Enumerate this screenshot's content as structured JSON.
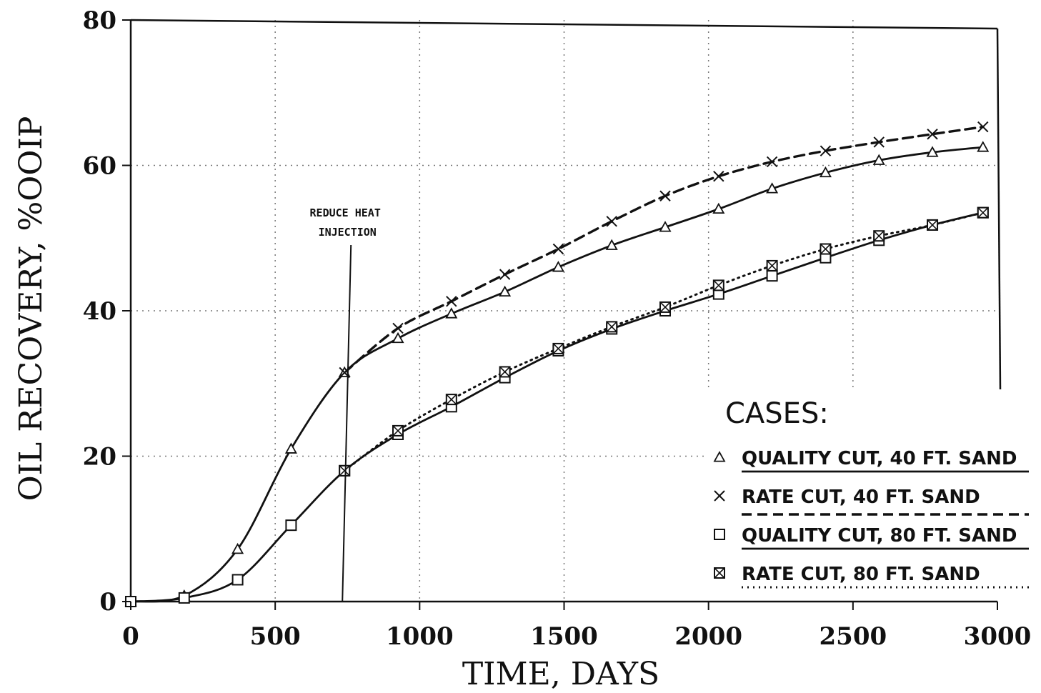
{
  "chart_data": {
    "type": "line",
    "xlabel": "TIME, DAYS",
    "ylabel": "OIL RECOVERY, %OOIP",
    "xlim": [
      0,
      3000
    ],
    "ylim": [
      0,
      80
    ],
    "xticks": [
      "0",
      "500",
      "1000",
      "1500",
      "2000",
      "2500",
      "3000"
    ],
    "yticks": [
      "0",
      "20",
      "40",
      "60",
      "80"
    ],
    "grid": "dotted",
    "legend_title": "CASES:",
    "legend_placement": "bottom-right",
    "annotation": {
      "lines": [
        "REDUCE HEAT",
        "INJECTION"
      ],
      "x": 740
    },
    "series": [
      {
        "name": "QUALITY CUT, 40 FT. SAND",
        "marker": "triangle",
        "line_style": "solid",
        "x": [
          0,
          185,
          370,
          555,
          740,
          925,
          1110,
          1295,
          1480,
          1665,
          1850,
          2035,
          2220,
          2405,
          2590,
          2775,
          2950
        ],
        "y": [
          0,
          0.8,
          7.2,
          21,
          31.5,
          36.2,
          39.6,
          42.6,
          46,
          49,
          51.5,
          54,
          56.8,
          59,
          60.7,
          61.8,
          62.5
        ]
      },
      {
        "name": "RATE CUT, 40 FT. SAND",
        "marker": "x",
        "line_style": "dashed",
        "x": [
          740,
          925,
          1110,
          1295,
          1480,
          1665,
          1850,
          2035,
          2220,
          2405,
          2590,
          2775,
          2950
        ],
        "y": [
          31.5,
          37.6,
          41.3,
          45,
          48.5,
          52.3,
          55.8,
          58.5,
          60.5,
          62,
          63.2,
          64.3,
          65.3
        ]
      },
      {
        "name": "QUALITY CUT, 80 FT. SAND",
        "marker": "square",
        "line_style": "solid",
        "x": [
          0,
          185,
          370,
          555,
          740,
          925,
          1110,
          1295,
          1480,
          1665,
          1850,
          2035,
          2220,
          2405,
          2590,
          2775,
          2950
        ],
        "y": [
          0,
          0.5,
          3,
          10.5,
          18,
          23,
          26.8,
          30.8,
          34.5,
          37.5,
          40,
          42.3,
          44.8,
          47.3,
          49.7,
          51.8,
          53.5
        ]
      },
      {
        "name": "RATE CUT, 80 FT. SAND",
        "marker": "crossed-square",
        "line_style": "dotted",
        "x": [
          740,
          925,
          1110,
          1295,
          1480,
          1665,
          1850,
          2035,
          2220,
          2405,
          2590,
          2775,
          2950
        ],
        "y": [
          18,
          23.5,
          27.8,
          31.6,
          34.8,
          37.8,
          40.5,
          43.5,
          46.2,
          48.5,
          50.3,
          51.8,
          53.5
        ]
      }
    ]
  }
}
